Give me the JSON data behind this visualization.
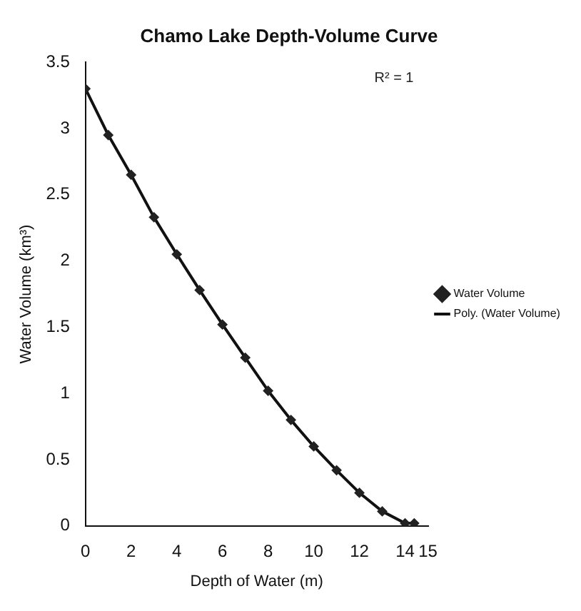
{
  "chart_data": {
    "type": "scatter",
    "title": "Chamo Lake Depth-Volume Curve",
    "xlabel": "Depth of Water (m)",
    "ylabel": "Water Volume (km³)",
    "x": [
      0,
      1,
      2,
      3,
      4,
      5,
      6,
      7,
      8,
      9,
      10,
      11,
      12,
      13,
      14,
      14.4
    ],
    "series": [
      {
        "name": "Water Volume",
        "type": "scatter",
        "color": "#222222",
        "marker": "diamond",
        "values": [
          3.3,
          2.95,
          2.65,
          2.33,
          2.05,
          1.78,
          1.52,
          1.27,
          1.02,
          0.8,
          0.6,
          0.42,
          0.25,
          0.11,
          0.02,
          0.02
        ]
      },
      {
        "name": "Poly. (Water Volume)",
        "type": "line",
        "color": "#111111",
        "marker": "none",
        "line_style": "solid",
        "values": [
          3.3,
          2.95,
          2.65,
          2.33,
          2.05,
          1.78,
          1.52,
          1.27,
          1.02,
          0.8,
          0.6,
          0.42,
          0.25,
          0.11,
          0.02,
          0.02
        ]
      }
    ],
    "xlim": [
      0,
      15
    ],
    "xticks": [
      0,
      2,
      4,
      6,
      8,
      10,
      12,
      14,
      15
    ],
    "ylim": [
      0,
      3.5
    ],
    "yticks": [
      0,
      0.5,
      1,
      1.5,
      2,
      2.5,
      3,
      3.5
    ],
    "annotations": [
      "R² = 1"
    ],
    "grid": false,
    "legend": "right"
  }
}
